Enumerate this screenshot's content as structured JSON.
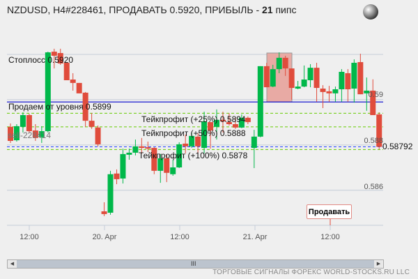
{
  "header": {
    "title_prefix": "NZDUSD, H4#228461, ПРОДАВАТЬ 0.5920, ПРИБЫЛЬ - ",
    "profit_pips": "21",
    "pips_unit": " пипс",
    "icon": "globe-icon"
  },
  "chart_data": {
    "type": "candlestick",
    "symbol": "NZDUSD",
    "ylim": [
      0.5845,
      0.592
    ],
    "y_ticks": [
      "0.59",
      "0.588",
      "0.586"
    ],
    "x_ticks": [
      "12:00",
      "20. Apr",
      "12:00",
      "21. Apr",
      "12:00"
    ],
    "current_price": "0.58792",
    "colors": {
      "up": "#00b84a",
      "down": "#e04c3c",
      "entry_line": "#0000cc",
      "tp_line": "#66cc00",
      "current_line": "#2244ff",
      "stop_box": "#e8aaa4"
    },
    "ohlc": [
      [
        0.5888,
        0.58895,
        0.58809,
        0.58818
      ],
      [
        0.58821,
        0.58892,
        0.58815,
        0.58883
      ],
      [
        0.5888,
        0.58944,
        0.58855,
        0.58932
      ],
      [
        0.58932,
        0.58938,
        0.58855,
        0.58861
      ],
      [
        0.58864,
        0.58892,
        0.58818,
        0.58831
      ],
      [
        0.58834,
        0.58883,
        0.58809,
        0.58861
      ],
      [
        0.58861,
        0.59212,
        0.58855,
        0.59209
      ],
      [
        0.59212,
        0.59225,
        0.59138,
        0.59194
      ],
      [
        0.59206,
        0.59225,
        0.59154,
        0.5916
      ],
      [
        0.59163,
        0.59163,
        0.59086,
        0.59086
      ],
      [
        0.59089,
        0.59117,
        0.5904,
        0.59074
      ],
      [
        0.59074,
        0.59074,
        0.59028,
        0.59028
      ],
      [
        0.59031,
        0.59034,
        0.5888,
        0.58907
      ],
      [
        0.58907,
        0.58941,
        0.58871,
        0.5888
      ],
      [
        0.58877,
        0.58886,
        0.58794,
        0.58803
      ],
      [
        0.58507,
        0.58547,
        0.58486,
        0.58495
      ],
      [
        0.58501,
        0.58686,
        0.58492,
        0.58671
      ],
      [
        0.58674,
        0.58692,
        0.58627,
        0.58649
      ],
      [
        0.58652,
        0.58784,
        0.5863,
        0.5876
      ],
      [
        0.58757,
        0.58784,
        0.58735,
        0.58766
      ],
      [
        0.58766,
        0.58824,
        0.58754,
        0.58794
      ],
      [
        0.58794,
        0.58831,
        0.58763,
        0.58787
      ],
      [
        0.5879,
        0.58815,
        0.58769,
        0.58784
      ],
      [
        0.58787,
        0.5879,
        0.58671,
        0.58686
      ],
      [
        0.58686,
        0.5876,
        0.58633,
        0.58741
      ],
      [
        0.58741,
        0.58757,
        0.58636,
        0.58677
      ],
      [
        0.58671,
        0.58735,
        0.58664,
        0.58701
      ],
      [
        0.58701,
        0.58812,
        0.58698,
        0.58803
      ],
      [
        0.58806,
        0.58846,
        0.58763,
        0.58794
      ],
      [
        0.58794,
        0.58855,
        0.58787,
        0.5884
      ],
      [
        0.58837,
        0.58852,
        0.5876,
        0.58794
      ],
      [
        0.58787,
        0.58947,
        0.58763,
        0.58904
      ],
      [
        0.58901,
        0.58901,
        0.58784,
        0.58864
      ],
      [
        0.5888,
        0.58957,
        0.58824,
        0.58911
      ],
      [
        0.58911,
        0.58947,
        0.58855,
        0.58904
      ],
      [
        0.58901,
        0.58941,
        0.58886,
        0.58892
      ],
      [
        0.58892,
        0.5892,
        0.58871,
        0.58877
      ],
      [
        0.58877,
        0.58935,
        0.58874,
        0.5892
      ],
      [
        0.5892,
        0.58926,
        0.58892,
        0.58901
      ],
      [
        0.58787,
        0.58867,
        0.58698,
        0.58837
      ],
      [
        0.58837,
        0.59148,
        0.58834,
        0.59148
      ],
      [
        0.59148,
        0.59163,
        0.59055,
        0.59055
      ],
      [
        0.59058,
        0.59154,
        0.59055,
        0.59135
      ],
      [
        0.59135,
        0.59209,
        0.59117,
        0.59185
      ],
      [
        0.59185,
        0.59194,
        0.59105,
        0.59138
      ],
      [
        0.59138,
        0.59138,
        0.59,
        0.59052
      ],
      [
        0.59049,
        0.59083,
        0.59046,
        0.59058
      ],
      [
        0.59058,
        0.59151,
        0.59055,
        0.59089
      ],
      [
        0.59086,
        0.59157,
        0.59055,
        0.59141
      ],
      [
        0.59141,
        0.59163,
        0.58991,
        0.59052
      ],
      [
        0.59049,
        0.59064,
        0.58963,
        0.59034
      ],
      [
        0.59037,
        0.59061,
        0.58991,
        0.59028
      ],
      [
        0.59028,
        0.59058,
        0.58991,
        0.59046
      ],
      [
        0.59046,
        0.59135,
        0.58991,
        0.59123
      ],
      [
        0.59117,
        0.59135,
        0.58991,
        0.59046
      ],
      [
        0.59049,
        0.59178,
        0.58987,
        0.59163
      ],
      [
        0.59166,
        0.59203,
        0.59024,
        0.59024
      ],
      [
        0.59028,
        0.59098,
        0.58951,
        0.5904
      ],
      [
        0.5904,
        0.5909,
        0.58932,
        0.58932
      ],
      [
        0.58935,
        0.58944,
        0.58781,
        0.58792
      ]
    ],
    "levels": {
      "stoploss": {
        "label": "Стоплосс 0.5920",
        "price": 0.592
      },
      "entry": {
        "label": "Продаем от уровня 0.5899",
        "price": 0.5899
      },
      "tp25": {
        "label": "Тейкпрофит (+25%) 0.5894",
        "price": 0.5894
      },
      "tp50": {
        "label": "Тейкпрофит (+50%) 0.5888",
        "price": 0.5888
      },
      "tp100": {
        "label": "Тейкпрофит (+100%) 0.5878",
        "price": 0.5878
      }
    },
    "order_label": "sell-228414",
    "signal_flag": "Продавать"
  },
  "scrollbar": {
    "grip": "III",
    "left_icon": "arrow-left-icon",
    "right_icon": "arrow-right-icon"
  },
  "footer": "ТОРГОВЫЕ СИГНАЛЫ ФОРЕКС WORLD-STOCKS.RU LLC"
}
